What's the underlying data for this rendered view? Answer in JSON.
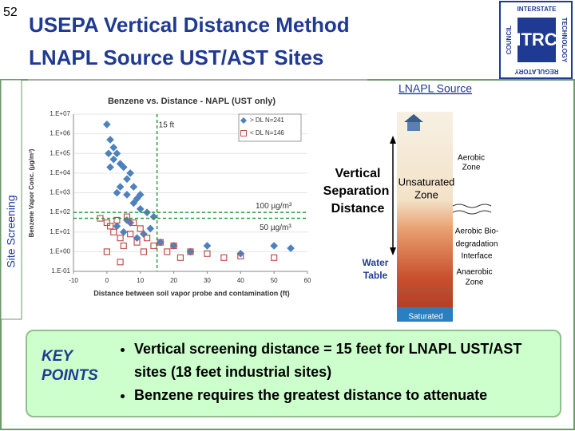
{
  "slide_number": "52",
  "header": {
    "title": [
      "USEPA Vertical Distance Method",
      "LNAPL Source UST/AST Sites"
    ]
  },
  "logo": {
    "mark": "ITRC",
    "top": "INTERSTATE",
    "right": "TECHNOLOGY",
    "bottom": "REGULATORY",
    "left": "COUNCIL"
  },
  "side_label": "Site Screening",
  "chart_data": {
    "type": "scatter",
    "title": "Benzene vs. Distance - NAPL (UST only)",
    "x_label": "Distance between soil vapor probe and contamination (ft)",
    "y_label": "Benzene Vapor Conc. (µg/m³)",
    "log_y": true,
    "xlim": [
      -10,
      60
    ],
    "xticks": [
      -10,
      0,
      10,
      20,
      30,
      40,
      50,
      60
    ],
    "ylim": [
      0.1,
      10000000
    ],
    "yticks": [
      {
        "value": 0.1,
        "label": "1.E-01"
      },
      {
        "value": 1,
        "label": "1.E+00"
      },
      {
        "value": 10,
        "label": "1.E+01"
      },
      {
        "value": 100,
        "label": "1.E+02"
      },
      {
        "value": 1000,
        "label": "1.E+03"
      },
      {
        "value": 10000,
        "label": "1.E+04"
      },
      {
        "value": 100000,
        "label": "1.E+05"
      },
      {
        "value": 1000000,
        "label": "1.E+06"
      },
      {
        "value": 10000000,
        "label": "1.E+07"
      }
    ],
    "grid": true,
    "legend": "top-right",
    "series": [
      {
        "name": "> DL  N=241",
        "color": "#4f81bd",
        "marker": "diamond",
        "x": [
          0,
          1,
          2,
          3,
          4,
          5,
          6,
          7,
          8,
          9,
          10,
          0.5,
          2,
          4,
          6,
          8,
          10,
          12,
          14,
          3,
          5,
          7,
          9,
          11,
          13,
          16,
          20,
          25,
          30,
          40,
          50,
          55,
          1,
          3,
          6
        ],
        "values": [
          3000000,
          500000,
          200000,
          100000,
          30000,
          20000,
          5000,
          10000,
          2000,
          500,
          800,
          100000,
          50000,
          2000,
          800,
          300,
          150,
          100,
          60,
          20,
          10,
          30,
          5,
          8,
          15,
          3,
          2,
          1,
          2,
          0.8,
          2,
          1.5,
          20000,
          1000,
          40
        ]
      },
      {
        "name": "< DL  N=146",
        "color": "#c0504d",
        "marker": "square",
        "x": [
          -2,
          0,
          1,
          2,
          3,
          4,
          5,
          6,
          7,
          8,
          9,
          10,
          11,
          12,
          14,
          16,
          18,
          20,
          22,
          25,
          30,
          35,
          40,
          50,
          0,
          4
        ],
        "values": [
          50,
          30,
          20,
          10,
          40,
          5,
          2,
          60,
          8,
          30,
          3,
          15,
          1,
          5,
          2,
          3,
          1,
          2,
          0.5,
          1,
          0.8,
          0.5,
          0.6,
          0.5,
          1,
          0.3
        ]
      }
    ],
    "reference_lines": [
      {
        "axis": "x",
        "value": 15,
        "label": "15 ft"
      },
      {
        "axis": "y",
        "value": 100,
        "label": "100 µg/m³"
      },
      {
        "axis": "y",
        "value": 50,
        "label": "50 µg/m³"
      }
    ]
  },
  "diagram": {
    "title": "LNAPL Source",
    "vertical_label": [
      "Vertical",
      "Separation",
      "Distance"
    ],
    "unsaturated": [
      "Unsaturated",
      "Zone"
    ],
    "aerobic": [
      "Aerobic",
      "Zone"
    ],
    "interface": [
      "Aerobic Bio-",
      "degradation",
      "Interface"
    ],
    "water_table": [
      "Water",
      "Table"
    ],
    "anaerobic": [
      "Anaerobic",
      "Zone"
    ],
    "saturated": "Saturated"
  },
  "key_points": {
    "heading": [
      "KEY",
      "POINTS"
    ],
    "bullets": [
      "Vertical screening distance = 15 feet for LNAPL UST/AST sites (18 feet industrial sites)",
      "Benzene requires the greatest distance to attenuate"
    ]
  }
}
